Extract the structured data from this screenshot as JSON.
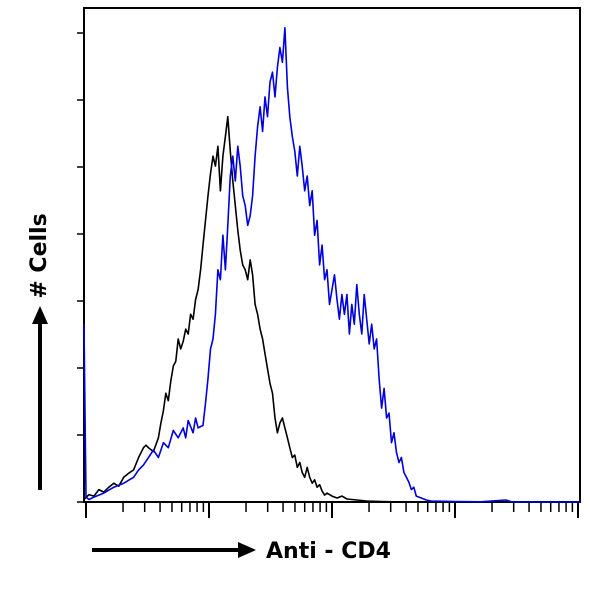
{
  "chart_data": {
    "type": "line",
    "title": "",
    "xlabel": "Anti - CD4",
    "ylabel": "# Cells",
    "x_scale": "log",
    "x_tick_labels": [],
    "y_tick_labels": [],
    "grid": false,
    "legend": "none",
    "colors": {
      "isotype": "#000000",
      "cd4": "#0000dd"
    },
    "series": [
      {
        "color": "#000000",
        "points": [
          [
            0.0,
            0.5
          ],
          [
            0.01,
            1.5
          ],
          [
            0.02,
            1.2
          ],
          [
            0.03,
            2.5
          ],
          [
            0.04,
            2.0
          ],
          [
            0.05,
            3.0
          ],
          [
            0.06,
            3.8
          ],
          [
            0.07,
            3.2
          ],
          [
            0.08,
            5.0
          ],
          [
            0.09,
            5.8
          ],
          [
            0.1,
            6.5
          ],
          [
            0.11,
            9.0
          ],
          [
            0.12,
            11.0
          ],
          [
            0.125,
            11.5
          ],
          [
            0.13,
            11.0
          ],
          [
            0.14,
            10.2
          ],
          [
            0.15,
            13.0
          ],
          [
            0.155,
            16.0
          ],
          [
            0.16,
            18.5
          ],
          [
            0.165,
            22.0
          ],
          [
            0.17,
            20.5
          ],
          [
            0.175,
            24.5
          ],
          [
            0.18,
            27.5
          ],
          [
            0.185,
            28.5
          ],
          [
            0.19,
            33.0
          ],
          [
            0.195,
            31.0
          ],
          [
            0.2,
            32.5
          ],
          [
            0.205,
            35.0
          ],
          [
            0.21,
            34.0
          ],
          [
            0.215,
            38.0
          ],
          [
            0.22,
            37.0
          ],
          [
            0.225,
            41.0
          ],
          [
            0.23,
            43.0
          ],
          [
            0.235,
            47.0
          ],
          [
            0.24,
            52.0
          ],
          [
            0.245,
            57.0
          ],
          [
            0.25,
            62.0
          ],
          [
            0.255,
            66.5
          ],
          [
            0.26,
            70.0
          ],
          [
            0.265,
            68.0
          ],
          [
            0.27,
            72.0
          ],
          [
            0.275,
            63.0
          ],
          [
            0.28,
            70.0
          ],
          [
            0.285,
            74.0
          ],
          [
            0.29,
            78.0
          ],
          [
            0.295,
            71.0
          ],
          [
            0.3,
            65.0
          ],
          [
            0.305,
            60.0
          ],
          [
            0.31,
            55.0
          ],
          [
            0.315,
            51.0
          ],
          [
            0.32,
            48.0
          ],
          [
            0.325,
            47.0
          ],
          [
            0.33,
            45.0
          ],
          [
            0.335,
            49.0
          ],
          [
            0.34,
            46.0
          ],
          [
            0.345,
            40.0
          ],
          [
            0.35,
            38.0
          ],
          [
            0.355,
            35.0
          ],
          [
            0.36,
            33.0
          ],
          [
            0.365,
            30.0
          ],
          [
            0.37,
            27.0
          ],
          [
            0.375,
            24.0
          ],
          [
            0.38,
            22.0
          ],
          [
            0.385,
            17.0
          ],
          [
            0.39,
            14.0
          ],
          [
            0.395,
            16.0
          ],
          [
            0.4,
            17.0
          ],
          [
            0.405,
            15.0
          ],
          [
            0.41,
            13.0
          ],
          [
            0.415,
            11.0
          ],
          [
            0.42,
            9.0
          ],
          [
            0.425,
            9.5
          ],
          [
            0.43,
            7.0
          ],
          [
            0.435,
            8.0
          ],
          [
            0.44,
            6.0
          ],
          [
            0.445,
            5.0
          ],
          [
            0.45,
            7.0
          ],
          [
            0.455,
            5.0
          ],
          [
            0.46,
            3.8
          ],
          [
            0.465,
            4.5
          ],
          [
            0.47,
            3.0
          ],
          [
            0.475,
            3.5
          ],
          [
            0.48,
            2.2
          ],
          [
            0.485,
            1.4
          ],
          [
            0.49,
            1.8
          ],
          [
            0.5,
            1.2
          ],
          [
            0.51,
            0.8
          ],
          [
            0.52,
            1.2
          ],
          [
            0.53,
            0.6
          ],
          [
            0.55,
            0.4
          ],
          [
            0.57,
            0.2
          ],
          [
            0.6,
            0.1
          ],
          [
            0.65,
            0.0
          ],
          [
            1.0,
            0.0
          ]
        ]
      },
      {
        "color": "#0000dd",
        "points": [
          [
            0.0,
            36.0
          ],
          [
            0.002,
            18.0
          ],
          [
            0.004,
            1.0
          ],
          [
            0.01,
            0.5
          ],
          [
            0.02,
            1.0
          ],
          [
            0.04,
            1.8
          ],
          [
            0.06,
            3.0
          ],
          [
            0.08,
            3.8
          ],
          [
            0.1,
            5.0
          ],
          [
            0.11,
            6.5
          ],
          [
            0.12,
            7.5
          ],
          [
            0.13,
            9.0
          ],
          [
            0.14,
            10.5
          ],
          [
            0.15,
            9.0
          ],
          [
            0.16,
            12.0
          ],
          [
            0.17,
            11.0
          ],
          [
            0.18,
            14.5
          ],
          [
            0.19,
            13.0
          ],
          [
            0.2,
            15.0
          ],
          [
            0.205,
            13.0
          ],
          [
            0.21,
            16.5
          ],
          [
            0.22,
            14.0
          ],
          [
            0.225,
            17.0
          ],
          [
            0.23,
            15.0
          ],
          [
            0.24,
            15.5
          ],
          [
            0.245,
            20.0
          ],
          [
            0.25,
            25.0
          ],
          [
            0.255,
            31.0
          ],
          [
            0.26,
            33.0
          ],
          [
            0.265,
            38.0
          ],
          [
            0.27,
            47.0
          ],
          [
            0.275,
            45.0
          ],
          [
            0.28,
            54.0
          ],
          [
            0.285,
            47.0
          ],
          [
            0.29,
            56.0
          ],
          [
            0.295,
            66.0
          ],
          [
            0.3,
            70.0
          ],
          [
            0.305,
            65.0
          ],
          [
            0.31,
            72.0
          ],
          [
            0.315,
            68.0
          ],
          [
            0.32,
            62.0
          ],
          [
            0.325,
            60.0
          ],
          [
            0.33,
            56.0
          ],
          [
            0.335,
            58.0
          ],
          [
            0.34,
            62.0
          ],
          [
            0.345,
            70.0
          ],
          [
            0.35,
            76.0
          ],
          [
            0.355,
            80.0
          ],
          [
            0.36,
            75.0
          ],
          [
            0.365,
            82.0
          ],
          [
            0.37,
            78.0
          ],
          [
            0.375,
            85.0
          ],
          [
            0.38,
            87.0
          ],
          [
            0.385,
            82.0
          ],
          [
            0.39,
            88.0
          ],
          [
            0.395,
            92.0
          ],
          [
            0.4,
            89.0
          ],
          [
            0.405,
            96.0
          ],
          [
            0.41,
            84.0
          ],
          [
            0.415,
            78.0
          ],
          [
            0.42,
            74.0
          ],
          [
            0.425,
            71.0
          ],
          [
            0.43,
            66.0
          ],
          [
            0.435,
            72.0
          ],
          [
            0.44,
            68.0
          ],
          [
            0.445,
            63.0
          ],
          [
            0.45,
            66.0
          ],
          [
            0.455,
            60.0
          ],
          [
            0.46,
            63.0
          ],
          [
            0.465,
            54.0
          ],
          [
            0.47,
            57.0
          ],
          [
            0.475,
            48.0
          ],
          [
            0.48,
            52.0
          ],
          [
            0.485,
            45.0
          ],
          [
            0.49,
            47.0
          ],
          [
            0.495,
            40.0
          ],
          [
            0.5,
            43.0
          ],
          [
            0.505,
            46.0
          ],
          [
            0.51,
            41.0
          ],
          [
            0.515,
            37.0
          ],
          [
            0.52,
            42.0
          ],
          [
            0.525,
            38.0
          ],
          [
            0.53,
            42.0
          ],
          [
            0.535,
            34.0
          ],
          [
            0.54,
            40.0
          ],
          [
            0.545,
            36.0
          ],
          [
            0.55,
            44.0
          ],
          [
            0.555,
            38.0
          ],
          [
            0.56,
            34.0
          ],
          [
            0.565,
            42.0
          ],
          [
            0.57,
            37.0
          ],
          [
            0.575,
            32.0
          ],
          [
            0.58,
            36.0
          ],
          [
            0.585,
            31.0
          ],
          [
            0.59,
            33.0
          ],
          [
            0.595,
            25.0
          ],
          [
            0.6,
            19.0
          ],
          [
            0.605,
            23.0
          ],
          [
            0.61,
            17.0
          ],
          [
            0.615,
            18.0
          ],
          [
            0.62,
            12.0
          ],
          [
            0.625,
            14.0
          ],
          [
            0.63,
            10.0
          ],
          [
            0.635,
            8.0
          ],
          [
            0.64,
            9.0
          ],
          [
            0.645,
            6.0
          ],
          [
            0.65,
            5.0
          ],
          [
            0.655,
            4.0
          ],
          [
            0.66,
            2.5
          ],
          [
            0.665,
            3.0
          ],
          [
            0.67,
            1.2
          ],
          [
            0.68,
            0.8
          ],
          [
            0.69,
            0.4
          ],
          [
            0.7,
            0.2
          ],
          [
            0.75,
            0.1
          ],
          [
            0.8,
            0.05
          ],
          [
            0.85,
            0.4
          ],
          [
            0.86,
            0.1
          ],
          [
            0.87,
            0.0
          ],
          [
            1.0,
            0.0
          ]
        ]
      }
    ]
  }
}
